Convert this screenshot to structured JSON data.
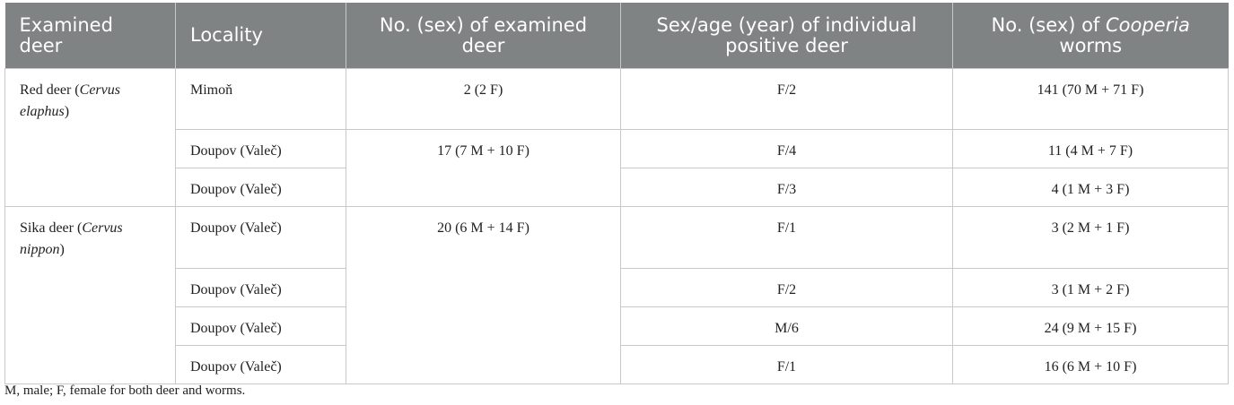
{
  "table": {
    "header": [
      "Examined deer",
      "Locality",
      "No. (sex) of examined deer",
      "Sex/age (year) of individual positive deer",
      {
        "before": "No. (sex) of ",
        "italic": "Cooperia",
        "after": " worms"
      }
    ],
    "rows": [
      [
        {
          "before": "Red deer (",
          "italic": "Cervus elaphus",
          "after": ")"
        },
        "Mimoň",
        "2 (2 F)",
        "F/2",
        "141 (70 M + 71 F)"
      ],
      [
        "Doupov (Valeč)",
        "17 (7 M + 10 F)",
        "F/4",
        "11 (4 M + 7 F)"
      ],
      [
        "Doupov (Valeč)",
        "F/3",
        "4 (1 M + 3 F)"
      ],
      [
        {
          "before": "Sika deer (",
          "italic": "Cervus nippon",
          "after": ")"
        },
        "Doupov (Valeč)",
        "20 (6 M + 14 F)",
        "F/1",
        "3 (2 M + 1 F)"
      ],
      [
        "Doupov (Valeč)",
        "F/2",
        "3 (1 M + 2 F)"
      ],
      [
        "Doupov (Valeč)",
        "M/6",
        "24 (9 M + 15 F)"
      ],
      [
        "Doupov (Valeč)",
        "F/1",
        "16 (6 M + 10 F)"
      ]
    ]
  },
  "footnote": "M, male; F, female for both deer and worms."
}
